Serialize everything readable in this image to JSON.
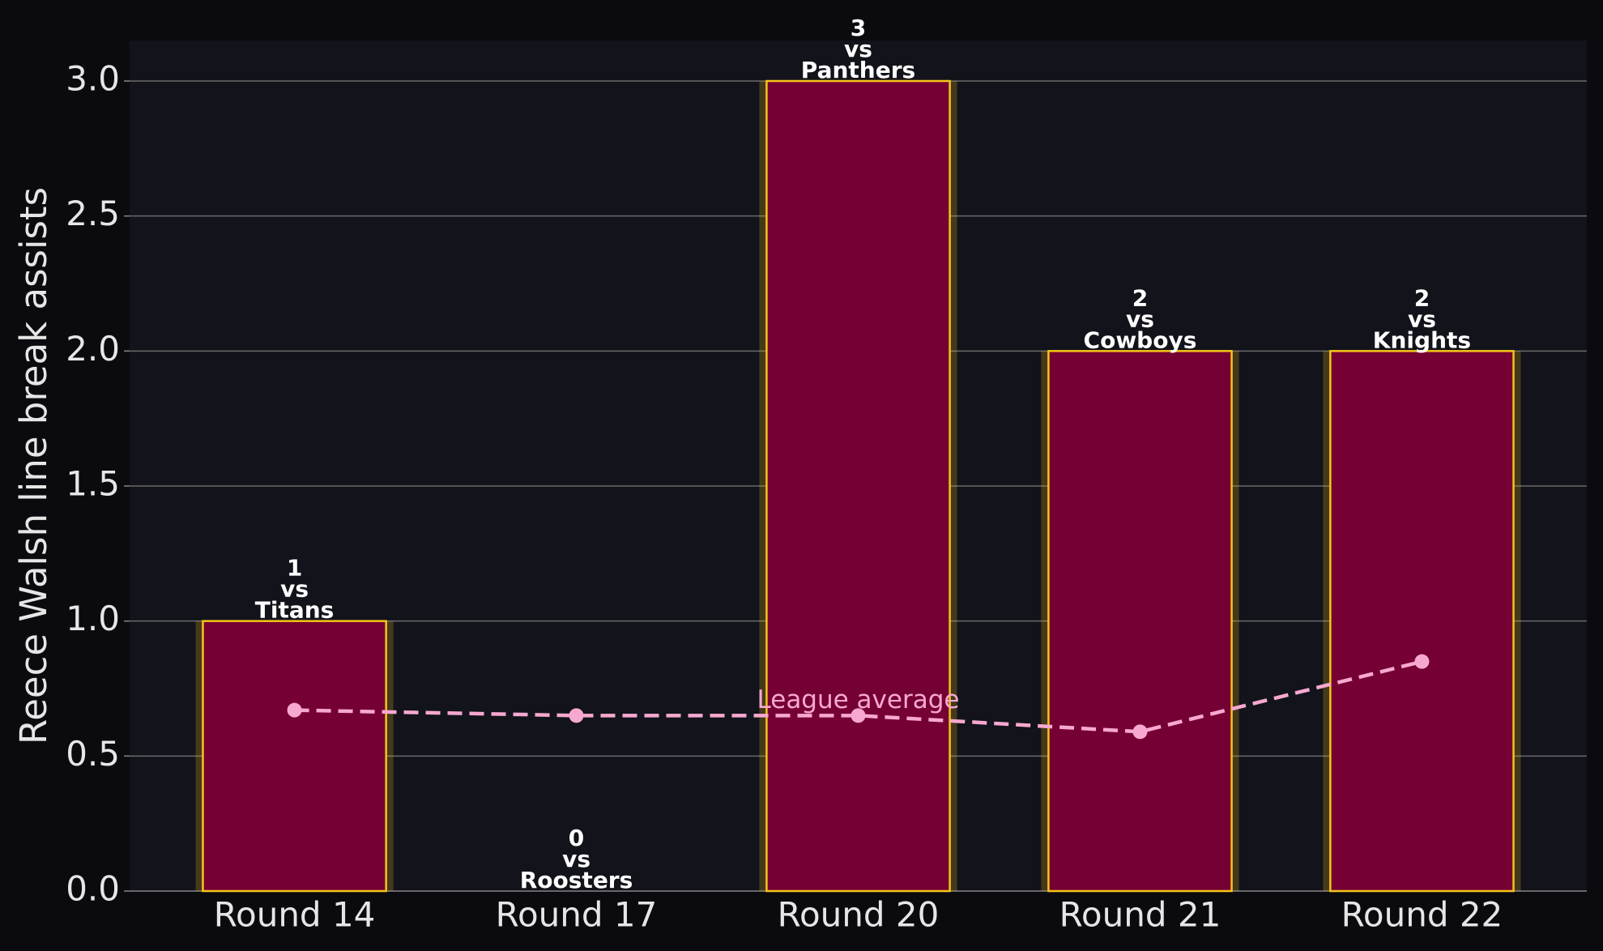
{
  "chart_data": {
    "type": "bar",
    "y_label": "Reece Walsh line break assists",
    "categories": [
      "Round 14",
      "Round 17",
      "Round 20",
      "Round 21",
      "Round 22"
    ],
    "series": [
      {
        "type": "bar",
        "color": "#750033",
        "edgecolor": "#f5c518",
        "values": [
          1,
          0,
          3,
          2,
          2
        ],
        "value_labels": [
          "1\nvs\nTitans",
          "0\nvs\nRoosters",
          "3\nvs\nPanthers",
          "2\nvs\nCowboys",
          "2\nvs\nKnights"
        ]
      },
      {
        "type": "line",
        "name": "League average",
        "color": "#f7a8d0",
        "dashed": true,
        "values": [
          0.67,
          0.65,
          0.65,
          0.59,
          0.85
        ]
      }
    ],
    "ylim": [
      0,
      3.15
    ],
    "yticks": [
      {
        "value": 0,
        "label": "0.0"
      },
      {
        "value": 0.5,
        "label": "0.5"
      },
      {
        "value": 1,
        "label": "1.0"
      },
      {
        "value": 1.5,
        "label": "1.5"
      },
      {
        "value": 2,
        "label": "2.0"
      },
      {
        "value": 2.5,
        "label": "2.5"
      },
      {
        "value": 3,
        "label": "3.0"
      }
    ],
    "grid": true
  }
}
